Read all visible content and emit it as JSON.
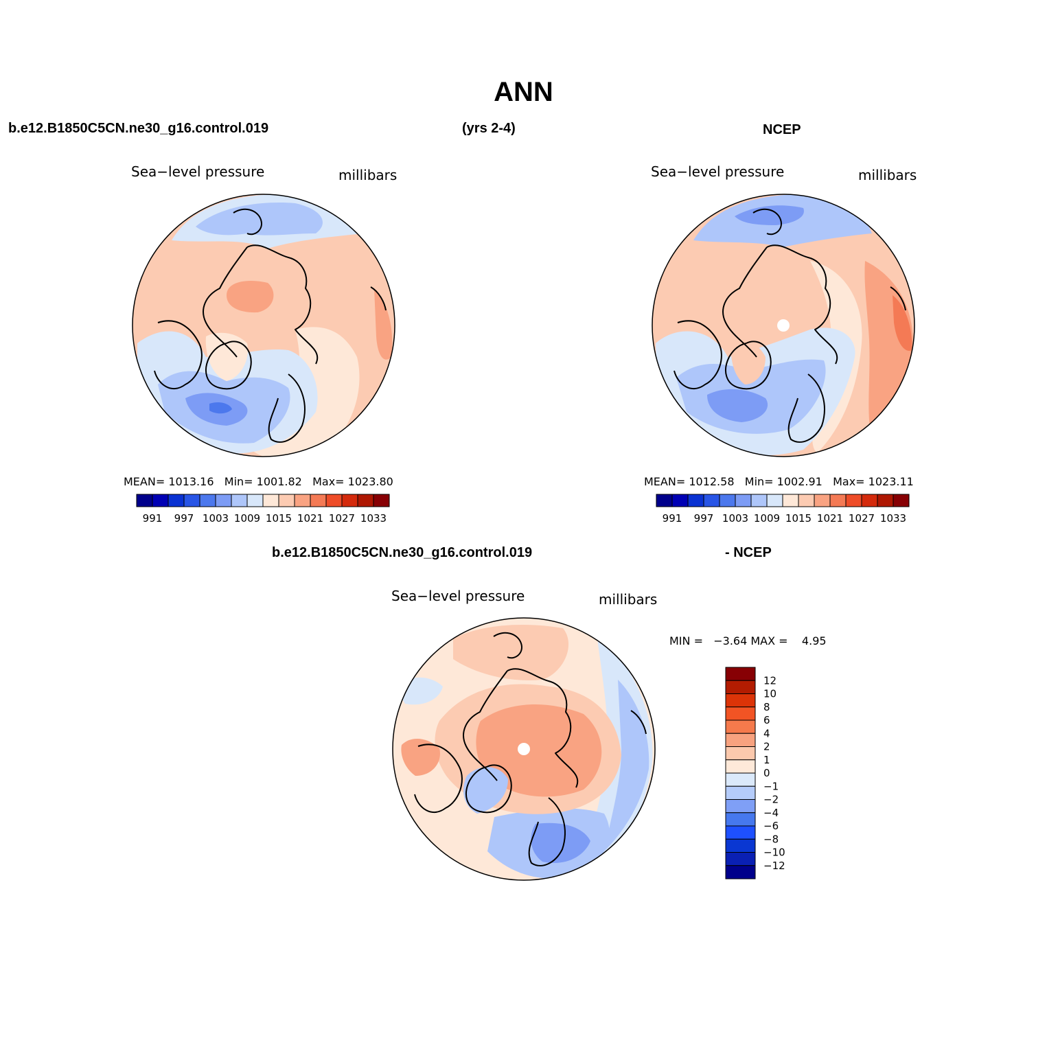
{
  "title": "ANN",
  "header": {
    "case_name": "b.e12.B1850C5CN.ne30_g16.control.019",
    "years": "(yrs 2-4)",
    "obs_name": "NCEP",
    "diff_case": "b.e12.B1850C5CN.ne30_g16.control.019",
    "diff_obs": "- NCEP"
  },
  "panels": [
    {
      "id": "model",
      "variable": "Sea−level pressure",
      "units": "millibars",
      "stats": {
        "mean_label": "MEAN=",
        "mean": "1013.16",
        "min_label": "Min=",
        "min": "1001.82",
        "max_label": "Max=",
        "max": "1023.80"
      }
    },
    {
      "id": "obs",
      "variable": "Sea−level pressure",
      "units": "millibars",
      "stats": {
        "mean_label": "MEAN=",
        "mean": "1012.58",
        "min_label": "Min=",
        "min": "1002.91",
        "max_label": "Max=",
        "max": "1023.11"
      }
    },
    {
      "id": "diff",
      "variable": "Sea−level pressure",
      "units": "millibars",
      "stats": {
        "min_label": "MIN =",
        "min": "−3.64",
        "max_label": "MAX =",
        "max": "4.95"
      }
    }
  ],
  "colorbar_abs": {
    "colors": [
      "#00008b",
      "#0000b4",
      "#0a32d2",
      "#2855e6",
      "#4c78ed",
      "#7d9cf5",
      "#aec6fa",
      "#d8e7fa",
      "#fee8d8",
      "#fccbb2",
      "#f9a382",
      "#f47a55",
      "#ee4c28",
      "#d42a0c",
      "#ae1702",
      "#870004"
    ],
    "labels": [
      "991",
      "997",
      "1003",
      "1009",
      "1015",
      "1021",
      "1027",
      "1033"
    ]
  },
  "colorbar_diff": {
    "colors": [
      "#00008b",
      "#0a20b4",
      "#0a37d2",
      "#1e50ff",
      "#4678ee",
      "#7f9ff6",
      "#b5ccfa",
      "#dbe9fa",
      "#fee9d9",
      "#fcc9ad",
      "#f8a27f",
      "#f57a4c",
      "#f25424",
      "#dc3408",
      "#b31c01",
      "#870004"
    ],
    "labels": [
      "12",
      "10",
      "8",
      "6",
      "4",
      "2",
      "1",
      "0",
      "−1",
      "−2",
      "−4",
      "−6",
      "−8",
      "−10",
      "−12"
    ]
  },
  "map_colors": {
    "ocean_warm": "#fee8d8",
    "warm1": "#fccbb2",
    "warm2": "#f9a382",
    "warm3": "#f47a55",
    "cool1": "#d8e7fa",
    "cool2": "#aec6fa",
    "cool3": "#7d9cf5",
    "cool4": "#4c78ed"
  }
}
